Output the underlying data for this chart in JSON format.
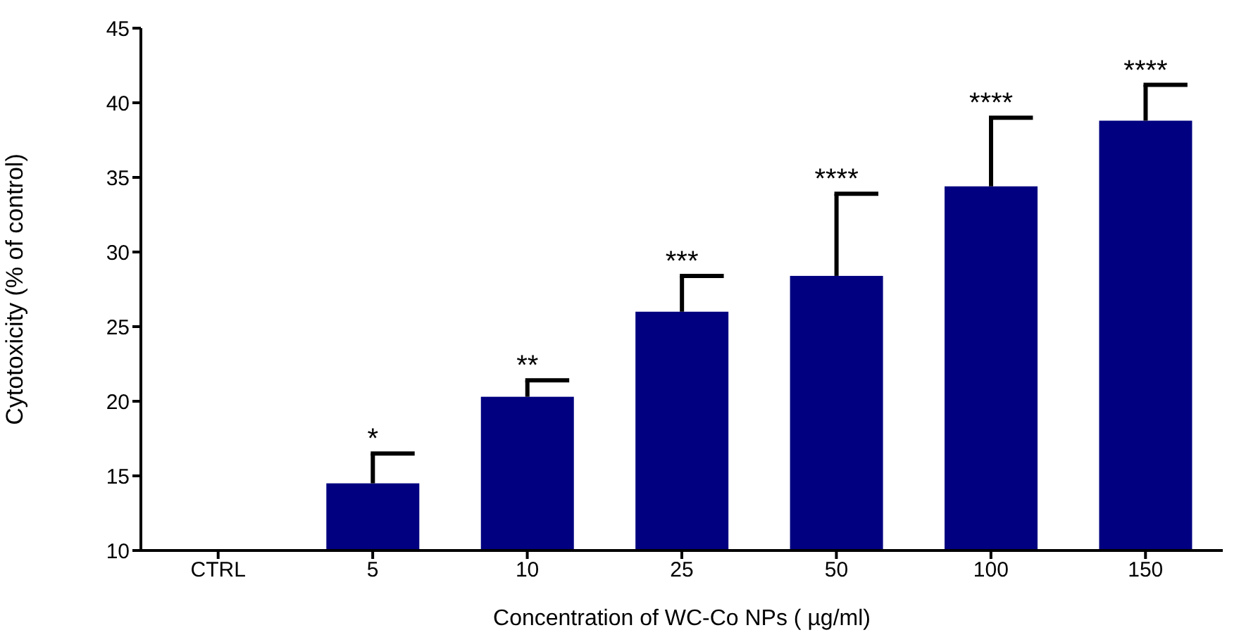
{
  "chart_data": {
    "type": "bar",
    "xlabel": "Concentration of WC-Co NPs ( µg/ml)",
    "ylabel": "Cytotoxicity  (% of control)",
    "categories": [
      "CTRL",
      "5",
      "10",
      "25",
      "50",
      "100",
      "150"
    ],
    "values": [
      null,
      14.5,
      20.3,
      26.0,
      28.4,
      34.4,
      38.8
    ],
    "errors": [
      null,
      [
        14.5,
        16.5
      ],
      [
        20.3,
        21.4
      ],
      [
        26.0,
        28.4
      ],
      [
        28.4,
        33.9
      ],
      [
        34.4,
        39.0
      ],
      [
        38.8,
        41.2
      ]
    ],
    "color": "#000080",
    "ylim": [
      10,
      45
    ],
    "yticks": [
      10,
      15,
      20,
      25,
      30,
      35,
      40,
      45
    ],
    "grid": false,
    "legend": false,
    "annotations": [
      {
        "text": "*",
        "x": "5",
        "y": 16.5
      },
      {
        "text": "**",
        "x": "10",
        "y": 21.4
      },
      {
        "text": "***",
        "x": "25",
        "y": 28.4
      },
      {
        "text": "****",
        "x": "50",
        "y": 33.9
      },
      {
        "text": "****",
        "x": "100",
        "y": 39.0
      },
      {
        "text": "****",
        "x": "150",
        "y": 41.2
      }
    ]
  }
}
